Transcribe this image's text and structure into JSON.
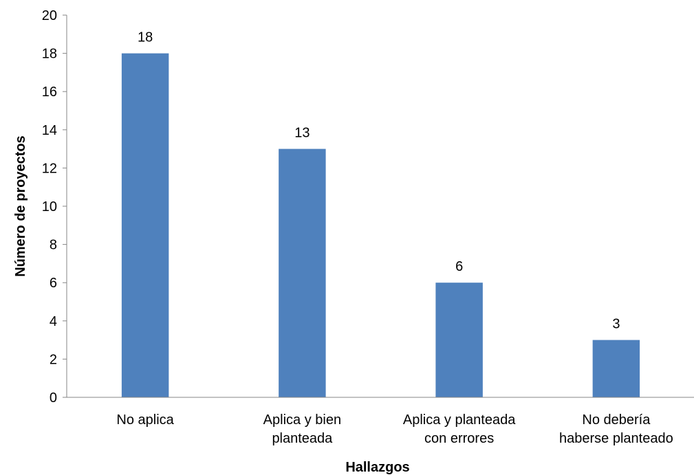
{
  "chart_data": {
    "type": "bar",
    "title": "",
    "xlabel": "Hallazgos",
    "ylabel": "Número de proyectos",
    "categories": [
      [
        "No aplica"
      ],
      [
        "Aplica y bien",
        "planteada"
      ],
      [
        "Aplica y planteada",
        "con errores"
      ],
      [
        "No debería",
        "haberse planteado"
      ]
    ],
    "values": [
      18,
      13,
      6,
      3
    ],
    "data_labels": [
      "18",
      "13",
      "6",
      "3"
    ],
    "yticks": [
      "0",
      "2",
      "4",
      "6",
      "8",
      "10",
      "12",
      "14",
      "16",
      "18",
      "20"
    ],
    "ylim": [
      0,
      20
    ],
    "grid": false,
    "legend": "none",
    "bar_color": "#4F81BD",
    "axis_color": "#868686"
  }
}
